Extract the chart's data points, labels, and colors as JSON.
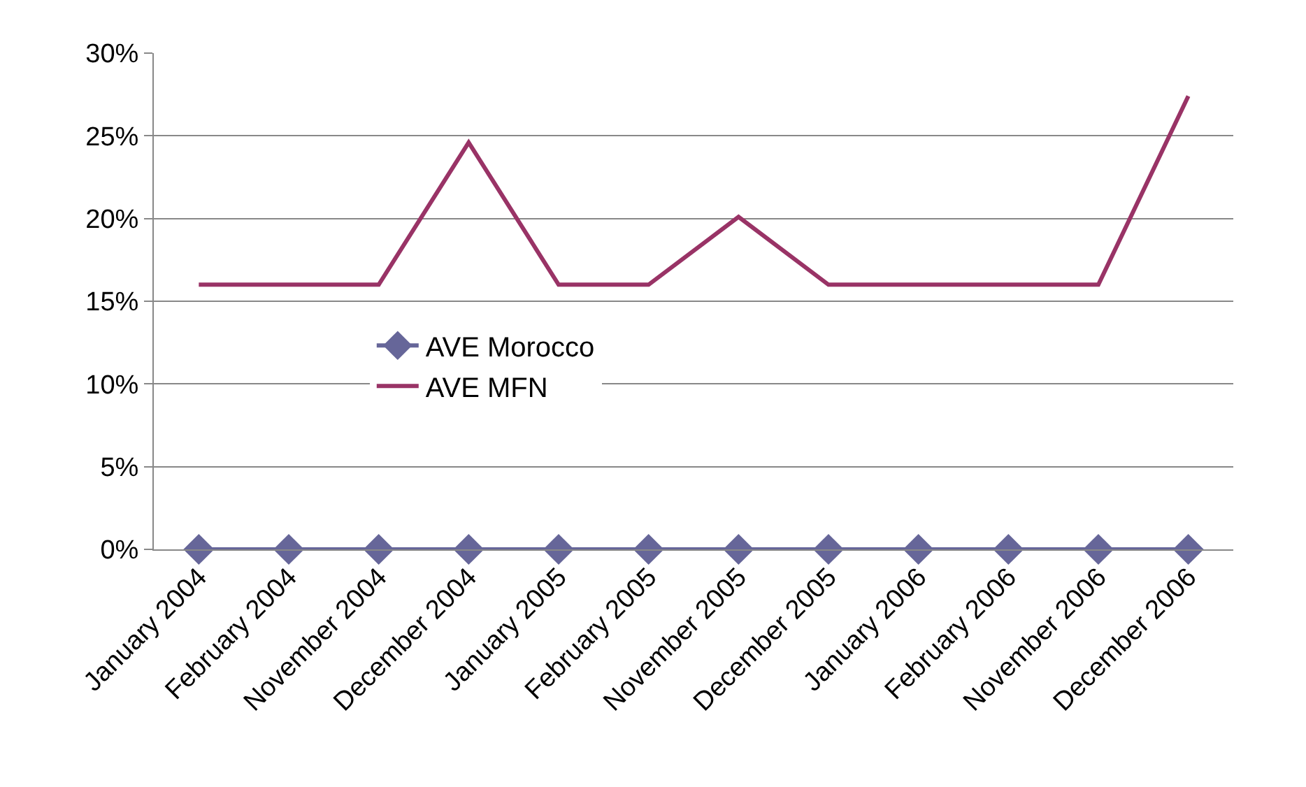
{
  "chart_data": {
    "type": "line",
    "categories": [
      "January 2004",
      "February 2004",
      "November 2004",
      "December 2004",
      "January 2005",
      "February 2005",
      "November 2005",
      "December 2005",
      "January 2006",
      "February 2006",
      "November 2006",
      "December 2006"
    ],
    "series": [
      {
        "name": "AVE Morocco",
        "color": "#666699",
        "marker": "diamond",
        "values": [
          0,
          0,
          0,
          0,
          0,
          0,
          0,
          0,
          0,
          0,
          0,
          0
        ]
      },
      {
        "name": "AVE MFN",
        "color": "#993366",
        "marker": "none",
        "values": [
          16,
          16,
          16,
          24.6,
          16,
          16,
          20.1,
          16,
          16,
          16,
          16,
          27.4
        ]
      }
    ],
    "ylim": [
      0,
      30
    ],
    "yticks": [
      {
        "value": 0,
        "label": "0%"
      },
      {
        "value": 5,
        "label": "5%"
      },
      {
        "value": 10,
        "label": "10%"
      },
      {
        "value": 15,
        "label": "15%"
      },
      {
        "value": 20,
        "label": "20%"
      },
      {
        "value": 25,
        "label": "25%"
      },
      {
        "value": 30,
        "label": "30%"
      }
    ],
    "grid": "y",
    "legend": "center left",
    "line_style": "solid"
  }
}
